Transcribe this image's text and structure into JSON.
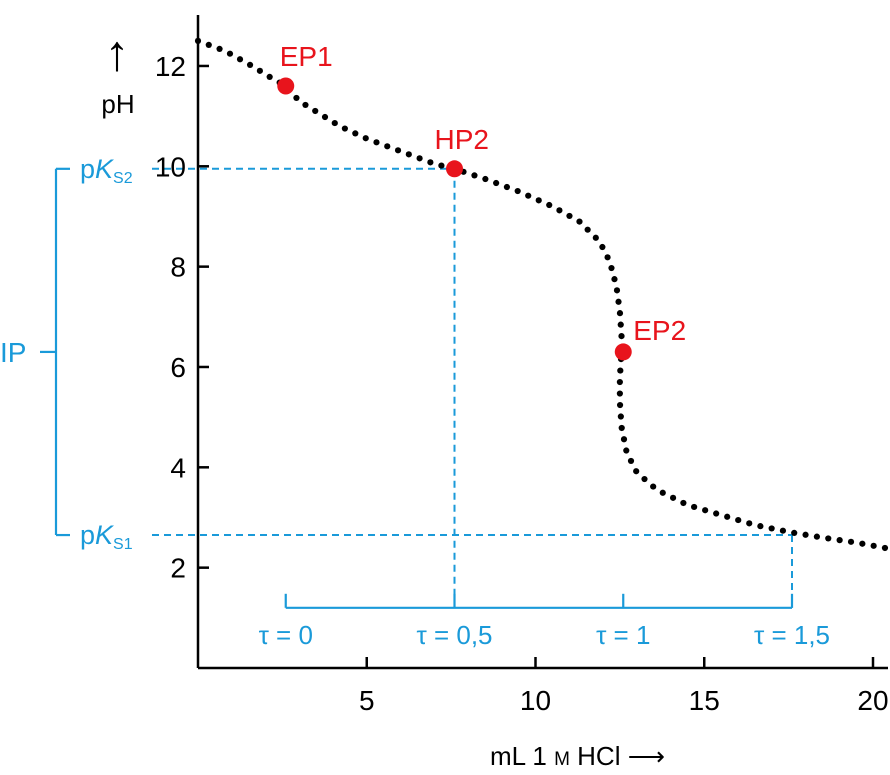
{
  "colors": {
    "axis": "#000000",
    "curve": "#000000",
    "point": "#e8141c",
    "guide": "#1a9ad9"
  },
  "chart_data": {
    "type": "scatter",
    "title": "",
    "xlabel": "mL 1 M HCl",
    "xlabel_parts": {
      "unit": "mL 1",
      "molar": "M",
      "reagent": "HCl",
      "arrow": "⟶"
    },
    "ylabel": "pH",
    "y_arrow": "↑",
    "xlim": [
      0,
      21
    ],
    "ylim": [
      0,
      13
    ],
    "xticks": [
      5,
      10,
      15,
      20
    ],
    "yticks": [
      2,
      4,
      6,
      8,
      10,
      12
    ],
    "grid": false,
    "curve": {
      "x": [
        0.0,
        0.8,
        1.6,
        2.2,
        2.6,
        3.0,
        3.6,
        4.2,
        5.0,
        6.0,
        7.0,
        7.6,
        8.5,
        9.5,
        10.5,
        11.3,
        11.9,
        12.2,
        12.4,
        12.5,
        12.55,
        12.55,
        12.5,
        12.5,
        12.55,
        12.7,
        13.0,
        13.6,
        14.5,
        15.5,
        16.5,
        17.6,
        18.5,
        19.5,
        20.3,
        21.0
      ],
      "y": [
        12.5,
        12.3,
        12.0,
        11.75,
        11.6,
        11.3,
        11.05,
        10.8,
        10.55,
        10.3,
        10.05,
        9.95,
        9.75,
        9.5,
        9.2,
        8.9,
        8.5,
        8.1,
        7.6,
        7.1,
        6.6,
        6.3,
        5.8,
        5.3,
        4.8,
        4.3,
        3.9,
        3.55,
        3.25,
        3.05,
        2.85,
        2.7,
        2.6,
        2.5,
        2.4,
        2.3
      ]
    },
    "points": [
      {
        "label": "EP1",
        "x": 2.6,
        "y": 11.6
      },
      {
        "label": "HP2",
        "x": 7.6,
        "y": 9.95
      },
      {
        "label": "EP2",
        "x": 12.6,
        "y": 6.3
      }
    ],
    "pk_levels": [
      {
        "prefix": "p",
        "symbol": "K",
        "subscript": "S2",
        "y": 9.95
      },
      {
        "prefix": "p",
        "symbol": "K",
        "subscript": "S1",
        "y": 2.65
      }
    ],
    "ip_label": "IP",
    "tau_scale": {
      "y": 1.2,
      "ticks": [
        {
          "label": "τ = 0",
          "x": 2.6
        },
        {
          "label": "τ = 0,5",
          "x": 7.6
        },
        {
          "label": "τ = 1",
          "x": 12.6
        },
        {
          "label": "τ = 1,5",
          "x": 17.6
        }
      ]
    }
  }
}
